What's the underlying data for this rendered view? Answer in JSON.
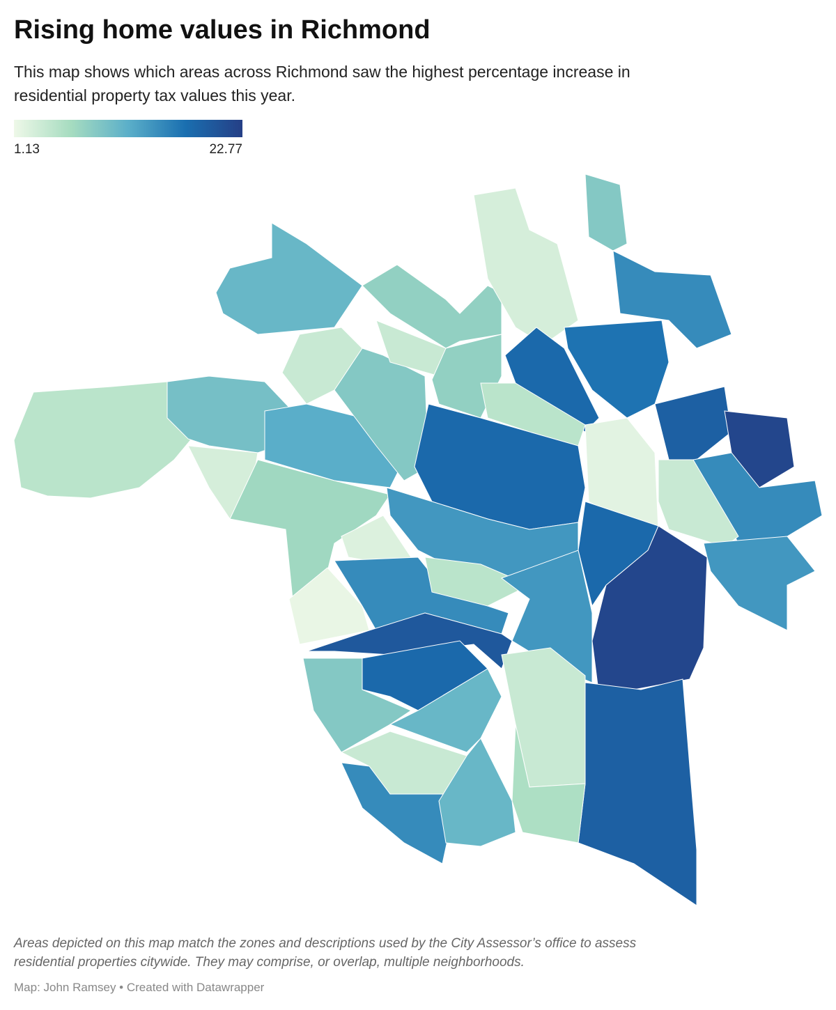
{
  "chart_data": {
    "type": "choropleth",
    "title": "Rising home values in Richmond",
    "subtitle": [
      "This map shows which areas across Richmond saw the highest percentage increase in",
      "residential property tax values this year."
    ],
    "color_scale": {
      "min": 1.13,
      "max": 22.77,
      "colors": [
        "#eef8e8",
        "#a6dcc0",
        "#5bafc9",
        "#1a6fb0",
        "#253f86"
      ]
    },
    "values": [
      5,
      10,
      3,
      12,
      7,
      1.5,
      2.5,
      11,
      8,
      4,
      9,
      4,
      8,
      3,
      9,
      15,
      17,
      18,
      5,
      18,
      2,
      19,
      22,
      15,
      4,
      14,
      22,
      18,
      14,
      15,
      5,
      14,
      20,
      18,
      9,
      11,
      4,
      19,
      6,
      4,
      15,
      11
    ],
    "notes": [
      "Areas depicted on this map match the zones and descriptions used by the City Assessor’s office to assess",
      "residential properties citywide. They may comprise, or overlap, multiple neighborhoods."
    ],
    "source": "Map: John Ramsey • Created with Datawrapper"
  }
}
